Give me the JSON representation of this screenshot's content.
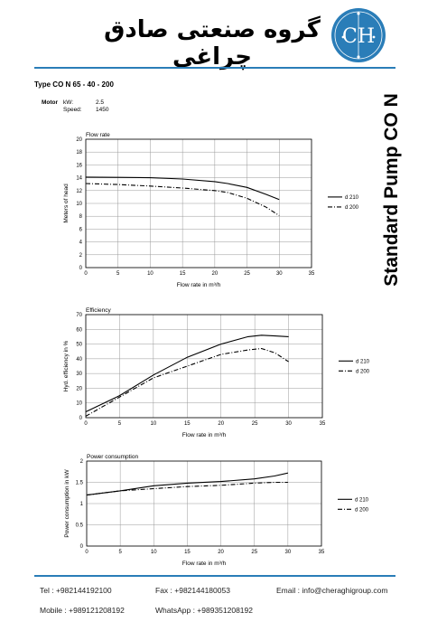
{
  "header": {
    "company_name": "گروه صنعتی صادق چراغی",
    "logo_letters": "CH"
  },
  "pump": {
    "type_line": "Type CO N  65 - 40 - 200",
    "motor_label": "Motor",
    "kw_key": "kW:",
    "kw_value": "2.5",
    "speed_key": "Speed:",
    "speed_value": "1450"
  },
  "side_title": "Standard Pump CO N",
  "chart_data": [
    {
      "type": "line",
      "title": "Flow rate",
      "xlabel": "Flow rate in m³/h",
      "ylabel": "Meters of head",
      "xlim": [
        0,
        35
      ],
      "ylim": [
        0,
        20
      ],
      "xticks": [
        "0",
        "5",
        "10",
        "15",
        "20",
        "25",
        "30",
        "35"
      ],
      "yticks": [
        "0",
        "2",
        "4",
        "6",
        "8",
        "10",
        "12",
        "14",
        "16",
        "18",
        "20"
      ],
      "grid": true,
      "legend_placement": "right",
      "series": [
        {
          "name": "d 210",
          "style": "solid",
          "x": [
            0,
            5,
            10,
            15,
            20,
            22,
            25,
            28,
            30
          ],
          "y": [
            14.1,
            14.05,
            14.0,
            13.8,
            13.4,
            13.1,
            12.5,
            11.4,
            10.6
          ]
        },
        {
          "name": "d 200",
          "style": "dashdot",
          "x": [
            0,
            5,
            10,
            15,
            20,
            22,
            25,
            28,
            30
          ],
          "y": [
            13.1,
            12.95,
            12.7,
            12.4,
            12.0,
            11.7,
            10.8,
            9.4,
            8.1
          ]
        }
      ]
    },
    {
      "type": "line",
      "title": "Efficiency",
      "xlabel": "Flow rate in m³/h",
      "ylabel": "Hyd. efficiency in %",
      "xlim": [
        0,
        35
      ],
      "ylim": [
        0,
        70
      ],
      "xticks": [
        "0",
        "5",
        "10",
        "15",
        "20",
        "25",
        "30",
        "35"
      ],
      "yticks": [
        "0",
        "10",
        "20",
        "30",
        "40",
        "50",
        "60",
        "70"
      ],
      "grid": true,
      "legend_placement": "right",
      "series": [
        {
          "name": "d 210",
          "style": "solid",
          "x": [
            0,
            5,
            10,
            15,
            20,
            24,
            26,
            28,
            30
          ],
          "y": [
            4,
            15,
            29,
            41,
            50,
            55,
            56,
            55.5,
            55
          ]
        },
        {
          "name": "d 200",
          "style": "dashdot",
          "x": [
            0,
            5,
            10,
            15,
            20,
            24,
            26,
            28,
            30
          ],
          "y": [
            1,
            14,
            27,
            35,
            43,
            46,
            47,
            44,
            38
          ]
        }
      ]
    },
    {
      "type": "line",
      "title": "Power consumption",
      "xlabel": "Flow rate in m³/h",
      "ylabel": "Power consumption in kW",
      "xlim": [
        0,
        35
      ],
      "ylim": [
        0,
        2
      ],
      "xticks": [
        "0",
        "5",
        "10",
        "15",
        "20",
        "25",
        "30",
        "35"
      ],
      "yticks": [
        "0",
        "0.5",
        "1",
        "1.5",
        "2"
      ],
      "grid": true,
      "legend_placement": "right",
      "series": [
        {
          "name": "d 210",
          "style": "solid",
          "x": [
            0,
            5,
            10,
            15,
            20,
            25,
            28,
            30
          ],
          "y": [
            1.2,
            1.3,
            1.42,
            1.48,
            1.52,
            1.58,
            1.65,
            1.72
          ]
        },
        {
          "name": "d 200",
          "style": "dashdot",
          "x": [
            0,
            5,
            10,
            15,
            20,
            25,
            28,
            30
          ],
          "y": [
            1.2,
            1.3,
            1.35,
            1.4,
            1.43,
            1.48,
            1.5,
            1.5
          ]
        }
      ]
    }
  ],
  "footer": {
    "tel": "Tel : +982144192100",
    "fax": "Fax : +982144180053",
    "email": "Email : info@cheraghigroup.com",
    "mobile": "Mobile : +989121208192",
    "whatsapp": "WhatsApp : +989351208192"
  },
  "colors": {
    "accent": "#2a7db8",
    "logo_ring": "#2a7db8"
  }
}
